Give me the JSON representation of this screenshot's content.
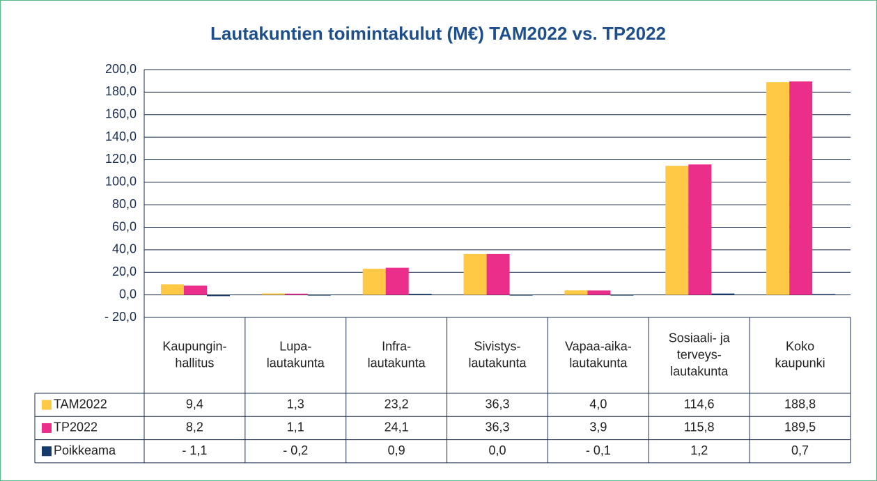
{
  "chart_data": {
    "type": "bar",
    "title": "Lautakuntien toimintakulut (M€) TAM2022 vs. TP2022",
    "categories": [
      [
        "Kaupungin-",
        "hallitus"
      ],
      [
        "Lupa-",
        "lautakunta"
      ],
      [
        "Infra-",
        "lautakunta"
      ],
      [
        "Sivistys-",
        "lautakunta"
      ],
      [
        "Vapaa-aika-",
        "lautakunta"
      ],
      [
        "Sosiaali- ja",
        "terveys-",
        "lautakunta"
      ],
      [
        "Koko",
        "kaupunki"
      ]
    ],
    "series": [
      {
        "name": "TAM2022",
        "color": "#ffc845",
        "values": [
          9.4,
          1.3,
          23.2,
          36.3,
          4.0,
          114.6,
          188.8
        ],
        "value_labels": [
          "9,4",
          "1,3",
          "23,2",
          "36,3",
          "4,0",
          "114,6",
          "188,8"
        ]
      },
      {
        "name": "TP2022",
        "color": "#ea2e8a",
        "values": [
          8.2,
          1.1,
          24.1,
          36.3,
          3.9,
          115.8,
          189.5
        ],
        "value_labels": [
          "8,2",
          "1,1",
          "24,1",
          "36,3",
          "3,9",
          "115,8",
          "189,5"
        ]
      },
      {
        "name": "Poikkeama",
        "color": "#163a6b",
        "values": [
          -1.1,
          -0.2,
          0.9,
          0.0,
          -0.1,
          1.2,
          0.7
        ],
        "value_labels": [
          "- 1,1",
          "- 0,2",
          "0,9",
          "0,0",
          "- 0,1",
          "1,2",
          "0,7"
        ]
      }
    ],
    "ylim": [
      -20,
      200
    ],
    "yticks": [
      {
        "value": -20,
        "label": "- 20,0"
      },
      {
        "value": 0,
        "label": "0,0"
      },
      {
        "value": 20,
        "label": "20,0"
      },
      {
        "value": 40,
        "label": "40,0"
      },
      {
        "value": 60,
        "label": "60,0"
      },
      {
        "value": 80,
        "label": "80,0"
      },
      {
        "value": 100,
        "label": "100,0"
      },
      {
        "value": 120,
        "label": "120,0"
      },
      {
        "value": 140,
        "label": "140,0"
      },
      {
        "value": 160,
        "label": "160,0"
      },
      {
        "value": 180,
        "label": "180,0"
      },
      {
        "value": 200,
        "label": "200,0"
      }
    ],
    "grid": true
  }
}
